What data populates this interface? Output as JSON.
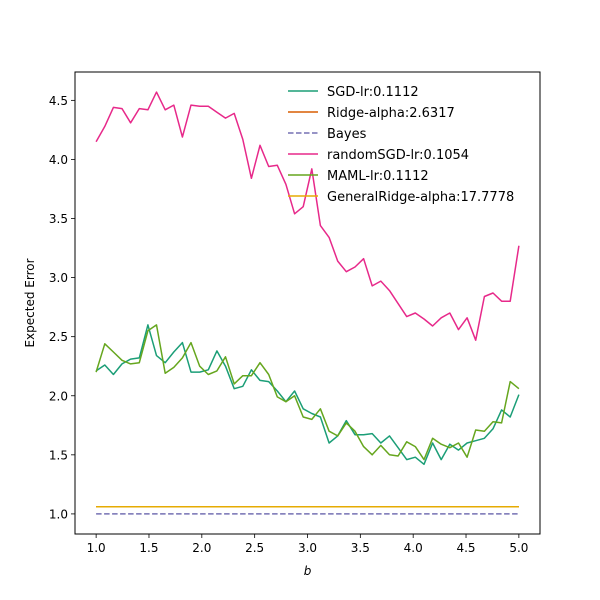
{
  "chart_data": {
    "type": "line",
    "title": "",
    "xlabel": "b",
    "ylabel": "Expected Error",
    "xlim": [
      0.8,
      5.2
    ],
    "ylim": [
      0.83,
      4.74
    ],
    "xticks": [
      1.0,
      1.5,
      2.0,
      2.5,
      3.0,
      3.5,
      4.0,
      4.5,
      5.0
    ],
    "xtick_labels": [
      "1.0",
      "1.5",
      "2.0",
      "2.5",
      "3.0",
      "3.5",
      "4.0",
      "4.5",
      "5.0"
    ],
    "yticks": [
      1.0,
      1.5,
      2.0,
      2.5,
      3.0,
      3.5,
      4.0,
      4.5
    ],
    "ytick_labels": [
      "1.0",
      "1.5",
      "2.0",
      "2.5",
      "3.0",
      "3.5",
      "4.0",
      "4.5"
    ],
    "grid": false,
    "legend_position": "top-right",
    "x": [
      1.0,
      1.0816,
      1.1633,
      1.2449,
      1.3265,
      1.4082,
      1.4898,
      1.5714,
      1.6531,
      1.7347,
      1.8163,
      1.898,
      1.9796,
      2.0612,
      2.1429,
      2.2245,
      2.3061,
      2.3878,
      2.4694,
      2.551,
      2.6327,
      2.7143,
      2.7959,
      2.8776,
      2.9592,
      3.0408,
      3.1224,
      3.2041,
      3.2857,
      3.3673,
      3.449,
      3.5306,
      3.6122,
      3.6939,
      3.7755,
      3.8571,
      3.9388,
      4.0204,
      4.102,
      4.1837,
      4.2653,
      4.3469,
      4.4286,
      4.5102,
      4.5918,
      4.6735,
      4.7551,
      4.8367,
      4.9184,
      5.0
    ],
    "series": [
      {
        "name": "SGD-lr:0.1112",
        "color": "#1b9e77",
        "dash": "solid",
        "values": [
          2.21,
          2.26,
          2.18,
          2.27,
          2.31,
          2.32,
          2.6,
          2.34,
          2.28,
          2.37,
          2.45,
          2.2,
          2.2,
          2.22,
          2.38,
          2.25,
          2.06,
          2.08,
          2.22,
          2.13,
          2.12,
          2.04,
          1.95,
          2.04,
          1.89,
          1.85,
          1.82,
          1.6,
          1.66,
          1.79,
          1.67,
          1.67,
          1.68,
          1.6,
          1.66,
          1.56,
          1.46,
          1.48,
          1.42,
          1.6,
          1.46,
          1.59,
          1.54,
          1.6,
          1.62,
          1.64,
          1.72,
          1.88,
          1.82,
          2.01
        ]
      },
      {
        "name": "Ridge-alpha:2.6317",
        "color": "#d95f02",
        "dash": "solid",
        "values": [
          1.06,
          1.06,
          1.06,
          1.06,
          1.06,
          1.06,
          1.06,
          1.06,
          1.06,
          1.06,
          1.06,
          1.06,
          1.06,
          1.06,
          1.06,
          1.06,
          1.06,
          1.06,
          1.06,
          1.06,
          1.06,
          1.06,
          1.06,
          1.06,
          1.06,
          1.06,
          1.06,
          1.06,
          1.06,
          1.06,
          1.06,
          1.06,
          1.06,
          1.06,
          1.06,
          1.06,
          1.06,
          1.06,
          1.06,
          1.06,
          1.06,
          1.06,
          1.06,
          1.06,
          1.06,
          1.06,
          1.06,
          1.06,
          1.06,
          1.06
        ]
      },
      {
        "name": "Bayes",
        "color": "#7570b3",
        "dash": "dashed",
        "values": [
          1.0,
          1.0,
          1.0,
          1.0,
          1.0,
          1.0,
          1.0,
          1.0,
          1.0,
          1.0,
          1.0,
          1.0,
          1.0,
          1.0,
          1.0,
          1.0,
          1.0,
          1.0,
          1.0,
          1.0,
          1.0,
          1.0,
          1.0,
          1.0,
          1.0,
          1.0,
          1.0,
          1.0,
          1.0,
          1.0,
          1.0,
          1.0,
          1.0,
          1.0,
          1.0,
          1.0,
          1.0,
          1.0,
          1.0,
          1.0,
          1.0,
          1.0,
          1.0,
          1.0,
          1.0,
          1.0,
          1.0,
          1.0,
          1.0,
          1.0
        ]
      },
      {
        "name": "randomSGD-lr:0.1054",
        "color": "#e7298a",
        "dash": "solid",
        "values": [
          4.15,
          4.28,
          4.44,
          4.43,
          4.31,
          4.43,
          4.42,
          4.57,
          4.42,
          4.46,
          4.19,
          4.46,
          4.45,
          4.45,
          4.4,
          4.35,
          4.39,
          4.17,
          3.84,
          4.12,
          3.94,
          3.95,
          3.79,
          3.54,
          3.6,
          3.92,
          3.44,
          3.34,
          3.14,
          3.05,
          3.09,
          3.16,
          2.93,
          2.97,
          2.89,
          2.78,
          2.67,
          2.7,
          2.65,
          2.59,
          2.66,
          2.7,
          2.56,
          2.66,
          2.47,
          2.84,
          2.87,
          2.8,
          2.8,
          3.27
        ]
      },
      {
        "name": "MAML-lr:0.1112",
        "color": "#66a61e",
        "dash": "solid",
        "values": [
          2.2,
          2.44,
          2.37,
          2.3,
          2.27,
          2.28,
          2.55,
          2.6,
          2.19,
          2.24,
          2.32,
          2.45,
          2.25,
          2.18,
          2.21,
          2.33,
          2.1,
          2.17,
          2.17,
          2.28,
          2.18,
          1.99,
          1.95,
          2.0,
          1.82,
          1.8,
          1.89,
          1.7,
          1.66,
          1.77,
          1.7,
          1.57,
          1.5,
          1.58,
          1.5,
          1.49,
          1.61,
          1.57,
          1.46,
          1.64,
          1.59,
          1.56,
          1.6,
          1.48,
          1.71,
          1.7,
          1.78,
          1.77,
          2.12,
          2.06
        ]
      },
      {
        "name": "GeneralRidge-alpha:17.7778",
        "color": "#e6ab02",
        "dash": "solid",
        "values": [
          1.06,
          1.06,
          1.06,
          1.06,
          1.06,
          1.06,
          1.06,
          1.06,
          1.06,
          1.06,
          1.06,
          1.06,
          1.06,
          1.06,
          1.06,
          1.06,
          1.06,
          1.06,
          1.06,
          1.06,
          1.06,
          1.06,
          1.06,
          1.06,
          1.06,
          1.06,
          1.06,
          1.06,
          1.06,
          1.06,
          1.06,
          1.06,
          1.06,
          1.06,
          1.06,
          1.06,
          1.06,
          1.06,
          1.06,
          1.06,
          1.06,
          1.06,
          1.06,
          1.06,
          1.06,
          1.06,
          1.06,
          1.06,
          1.06,
          1.06
        ]
      }
    ]
  }
}
